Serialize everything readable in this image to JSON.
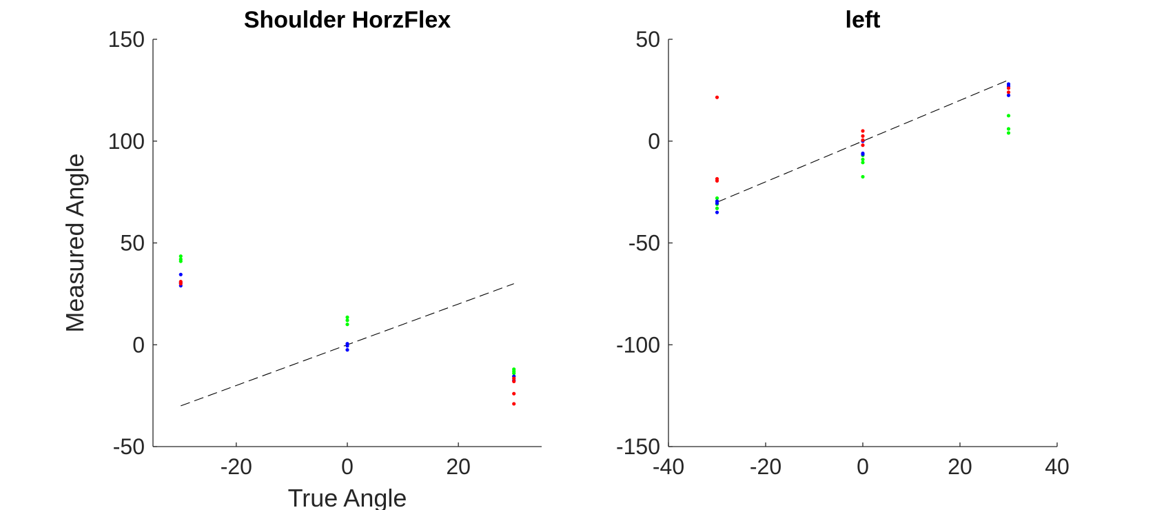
{
  "chart_data": [
    {
      "type": "scatter",
      "title": "Shoulder HorzFlex",
      "xlabel": "True Angle",
      "ylabel": "Measured Angle",
      "xlim": [
        -35,
        35
      ],
      "ylim": [
        -50,
        150
      ],
      "xticks": [
        -20,
        0,
        20
      ],
      "yticks": [
        -50,
        0,
        50,
        100,
        150
      ],
      "xtick_labels": [
        "-20",
        "0",
        "20"
      ],
      "ytick_labels": [
        "-50",
        "0",
        "50",
        "100",
        "150"
      ],
      "reference_line": {
        "style": "dashed",
        "color": "#000000",
        "x": [
          -30,
          30
        ],
        "y": [
          -30,
          30
        ]
      },
      "series": [
        {
          "color": "#00ff00",
          "x": [
            -30,
            -30,
            -30,
            0,
            0,
            0,
            30,
            30,
            30,
            30
          ],
          "y": [
            43.5,
            42,
            41,
            13.5,
            12,
            10,
            -12,
            -13,
            -14,
            -15.5
          ]
        },
        {
          "color": "#0000ff",
          "x": [
            -30,
            -30,
            -30,
            0,
            0,
            0,
            30,
            30
          ],
          "y": [
            34.5,
            30.5,
            29,
            0.5,
            -0.5,
            -2.5,
            -15.5,
            -17.5
          ]
        },
        {
          "color": "#ff0000",
          "x": [
            -30,
            -30,
            30,
            30,
            30,
            30
          ],
          "y": [
            31,
            30,
            -16.5,
            -18,
            -24,
            -29
          ]
        }
      ]
    },
    {
      "type": "scatter",
      "title": "left",
      "xlabel": "",
      "ylabel": "",
      "xlim": [
        -40,
        40
      ],
      "ylim": [
        -150,
        50
      ],
      "xticks": [
        -40,
        -20,
        0,
        20,
        40
      ],
      "yticks": [
        -150,
        -100,
        -50,
        0,
        50
      ],
      "xtick_labels": [
        "-40",
        "-20",
        "0",
        "20",
        "40"
      ],
      "ytick_labels": [
        "-150",
        "-100",
        "-50",
        "0",
        "50"
      ],
      "reference_line": {
        "style": "dashed",
        "color": "#000000",
        "x": [
          -30,
          30
        ],
        "y": [
          -30,
          30
        ]
      },
      "series": [
        {
          "color": "#00ff00",
          "x": [
            -30,
            -30,
            -30,
            -30,
            0,
            0,
            0,
            0,
            30,
            30,
            30
          ],
          "y": [
            -28,
            -29.5,
            -31,
            -33,
            -7,
            -9,
            -10.5,
            -17.5,
            12.5,
            6,
            4
          ]
        },
        {
          "color": "#0000ff",
          "x": [
            -30,
            -30,
            -30,
            0,
            0,
            0,
            30,
            30,
            30
          ],
          "y": [
            -29.5,
            -30.5,
            -35,
            0,
            -6,
            -6.5,
            28,
            27,
            22.5
          ]
        },
        {
          "color": "#ff0000",
          "x": [
            -30,
            -30,
            -30,
            0,
            0,
            0,
            0,
            30,
            30
          ],
          "y": [
            21.5,
            -18.5,
            -19.5,
            5,
            2.5,
            0.5,
            -2,
            26,
            24
          ]
        }
      ]
    }
  ]
}
